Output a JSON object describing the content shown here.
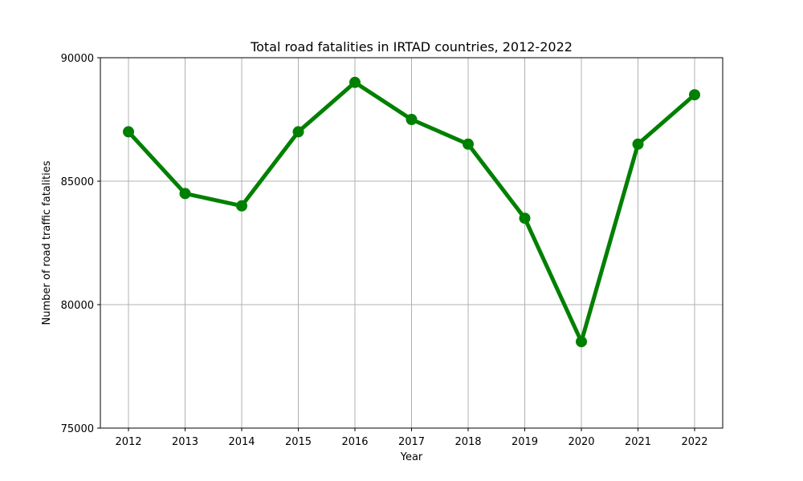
{
  "chart_data": {
    "type": "line",
    "title": "Total road fatalities in IRTAD countries, 2012-2022",
    "xlabel": "Year",
    "ylabel": "Number of road traffic fatalities",
    "x": [
      "2012",
      "2013",
      "2014",
      "2015",
      "2016",
      "2017",
      "2018",
      "2019",
      "2020",
      "2021",
      "2022"
    ],
    "series": [
      {
        "values": [
          87000,
          84500,
          84000,
          87000,
          89000,
          87500,
          86500,
          83500,
          78500,
          86500,
          88500
        ],
        "color": "#008000",
        "marker": "circle"
      }
    ],
    "ylim": [
      75000,
      90000
    ],
    "yticks": [
      "75000",
      "80000",
      "85000",
      "90000"
    ],
    "grid": true,
    "legend": "none"
  }
}
